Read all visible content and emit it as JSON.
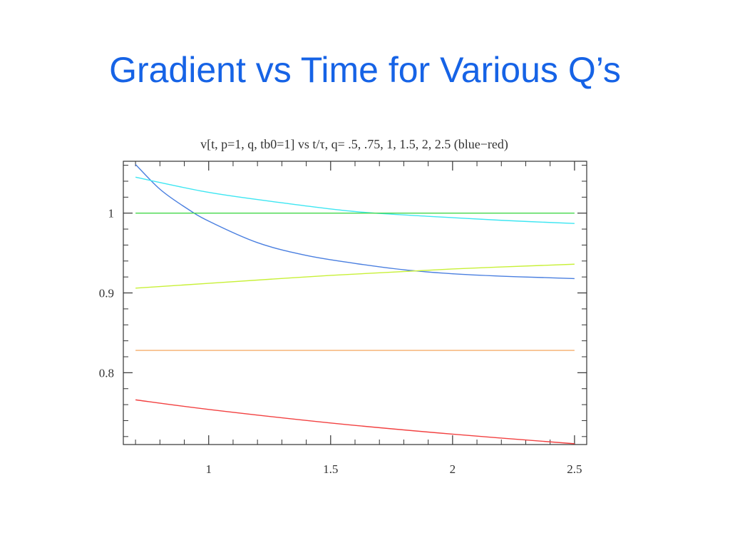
{
  "slide": {
    "title": "Gradient vs Time for Various Q’s"
  },
  "chart_data": {
    "type": "line",
    "title": "v[t, p=1, q, tb0=1] vs t/τ, q= .5, .75, 1, 1.5, 2, 2.5 (blue−red)",
    "xlabel": "",
    "ylabel": "",
    "xlim": [
      0.65,
      2.55
    ],
    "ylim": [
      0.71,
      1.065
    ],
    "x_ticks": [
      1,
      1.5,
      2,
      2.5
    ],
    "x_tick_labels": [
      "1",
      "1.5",
      "2",
      "2.5"
    ],
    "y_ticks": [
      0.8,
      0.9,
      1
    ],
    "y_tick_labels": [
      "0.8",
      "0.9",
      "1"
    ],
    "grid": false,
    "frame": true,
    "series": [
      {
        "color": "#4a7fe0",
        "points": [
          [
            0.7,
            1.061
          ],
          [
            0.8,
            1.03
          ],
          [
            0.9,
            1.008
          ],
          [
            1.0,
            0.99
          ],
          [
            1.2,
            0.963
          ],
          [
            1.4,
            0.947
          ],
          [
            1.6,
            0.937
          ],
          [
            1.8,
            0.929
          ],
          [
            2.0,
            0.924
          ],
          [
            2.2,
            0.921
          ],
          [
            2.4,
            0.919
          ],
          [
            2.5,
            0.918
          ]
        ]
      },
      {
        "color": "#3ee6f2",
        "points": [
          [
            0.7,
            1.045
          ],
          [
            1.0,
            1.026
          ],
          [
            1.3,
            1.013
          ],
          [
            1.6,
            1.002
          ],
          [
            1.9,
            0.996
          ],
          [
            2.2,
            0.991
          ],
          [
            2.5,
            0.987
          ]
        ]
      },
      {
        "color": "#44d84a",
        "points": [
          [
            0.7,
            1.0
          ],
          [
            2.5,
            1.0
          ]
        ]
      },
      {
        "color": "#c8f038",
        "points": [
          [
            0.7,
            0.906
          ],
          [
            1.0,
            0.912
          ],
          [
            1.5,
            0.922
          ],
          [
            2.0,
            0.93
          ],
          [
            2.5,
            0.936
          ]
        ]
      },
      {
        "color": "#f5ad6c",
        "points": [
          [
            0.7,
            0.828
          ],
          [
            2.5,
            0.828
          ]
        ]
      },
      {
        "color": "#f24141",
        "points": [
          [
            0.7,
            0.766
          ],
          [
            1.0,
            0.754
          ],
          [
            1.5,
            0.737
          ],
          [
            2.0,
            0.723
          ],
          [
            2.5,
            0.711
          ]
        ]
      }
    ]
  }
}
